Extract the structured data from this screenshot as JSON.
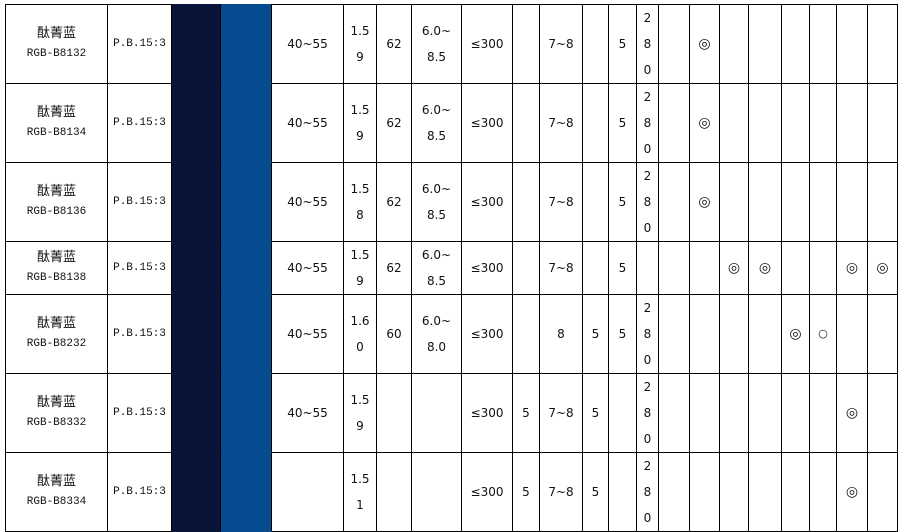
{
  "colors": {
    "dark_swatch": "#0a1438",
    "blue_swatch": "#064a8f"
  },
  "rows": [
    {
      "name": "酞菁蓝",
      "code": "RGB-B8132",
      "pigment": "P.B.15:3",
      "v1": "40~55",
      "v2": "1.59",
      "v3": "62",
      "v4": "6.0~8.5",
      "v5": "≤300",
      "v6": "",
      "v7": "7~8",
      "v8": "",
      "v9": "5",
      "v10": "280",
      "marks": [
        "",
        "◎",
        "",
        "",
        "",
        "",
        "",
        ""
      ]
    },
    {
      "name": "酞菁蓝",
      "code": "RGB-B8134",
      "pigment": "P.B.15:3",
      "v1": "40~55",
      "v2": "1.59",
      "v3": "62",
      "v4": "6.0~8.5",
      "v5": "≤300",
      "v6": "",
      "v7": "7~8",
      "v8": "",
      "v9": "5",
      "v10": "280",
      "marks": [
        "",
        "◎",
        "",
        "",
        "",
        "",
        "",
        ""
      ]
    },
    {
      "name": "酞菁蓝",
      "code": "RGB-B8136",
      "pigment": "P.B.15:3",
      "v1": "40~55",
      "v2": "1.58",
      "v3": "62",
      "v4": "6.0~8.5",
      "v5": "≤300",
      "v6": "",
      "v7": "7~8",
      "v8": "",
      "v9": "5",
      "v10": "280",
      "marks": [
        "",
        "◎",
        "",
        "",
        "",
        "",
        "",
        ""
      ]
    },
    {
      "name": "酞菁蓝",
      "code": "RGB-B8138",
      "pigment": "P.B.15:3",
      "v1": "40~55",
      "v2": "1.59",
      "v3": "62",
      "v4": "6.0~8.5",
      "v5": "≤300",
      "v6": "",
      "v7": "7~8",
      "v8": "",
      "v9": "5",
      "v10": "",
      "marks": [
        "",
        "",
        "◎",
        "◎",
        "",
        "",
        "◎",
        "◎"
      ]
    },
    {
      "name": "酞菁蓝",
      "code": "RGB-B8232",
      "pigment": "P.B.15:3",
      "v1": "40~55",
      "v2": "1.60",
      "v3": "60",
      "v4": "6.0~8.0",
      "v5": "≤300",
      "v6": "",
      "v7": "8",
      "v8": "5",
      "v9": "5",
      "v10": "280",
      "marks": [
        "",
        "",
        "",
        "",
        "◎",
        "○",
        "",
        ""
      ]
    },
    {
      "name": "酞菁蓝",
      "code": "RGB-B8332",
      "pigment": "P.B.15:3",
      "v1": "40~55",
      "v2": "1.59",
      "v3": "",
      "v4": "",
      "v5": "≤300",
      "v6": "5",
      "v7": "7~8",
      "v8": "5",
      "v9": "",
      "v10": "280",
      "marks": [
        "",
        "",
        "",
        "",
        "",
        "",
        "◎",
        ""
      ]
    },
    {
      "name": "酞菁蓝",
      "code": "RGB-B8334",
      "pigment": "P.B.15:3",
      "v1": "",
      "v2": "1.51",
      "v3": "",
      "v4": "",
      "v5": "≤300",
      "v6": "5",
      "v7": "7~8",
      "v8": "5",
      "v9": "",
      "v10": "280",
      "marks": [
        "",
        "",
        "",
        "",
        "",
        "",
        "◎",
        ""
      ]
    }
  ]
}
